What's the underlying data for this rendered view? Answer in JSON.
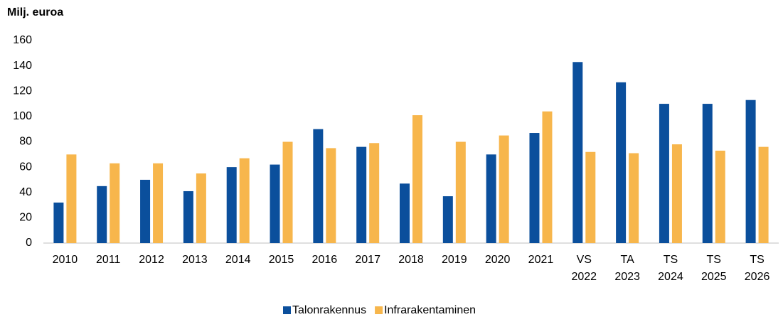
{
  "chart_data": {
    "type": "bar",
    "y_label": "Milj. euroa",
    "categories": [
      "2010",
      "2011",
      "2012",
      "2013",
      "2014",
      "2015",
      "2016",
      "2017",
      "2018",
      "2019",
      "2020",
      "2021",
      "VS 2022",
      "TA 2023",
      "TS 2024",
      "TS 2025",
      "TS 2026"
    ],
    "series": [
      {
        "name": "Talonrakennus",
        "color": "#0b4f9c",
        "values": [
          32,
          45,
          50,
          41,
          60,
          62,
          90,
          76,
          47,
          37,
          70,
          87,
          143,
          127,
          110,
          110,
          113
        ]
      },
      {
        "name": "Infrarakentaminen",
        "color": "#f7b64c",
        "values": [
          70,
          63,
          63,
          55,
          67,
          80,
          75,
          79,
          101,
          80,
          85,
          104,
          72,
          71,
          78,
          73,
          76
        ]
      }
    ],
    "ylim": [
      0,
      160
    ],
    "yticks": [
      0,
      20,
      40,
      60,
      80,
      100,
      120,
      140,
      160
    ],
    "grid": false,
    "legend": "bottom"
  }
}
